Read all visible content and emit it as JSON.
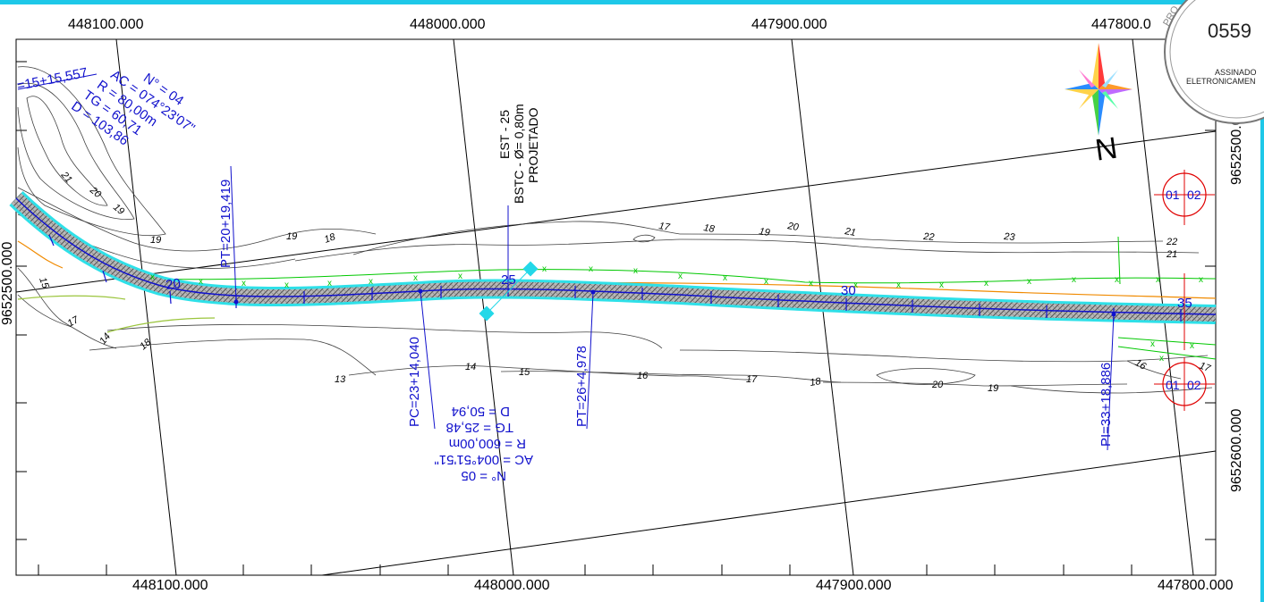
{
  "grid": {
    "top_x_labels": [
      "448100.000",
      "448000.000",
      "447900.000",
      "447800.0"
    ],
    "bottom_x_labels": [
      "448100.000",
      "448000.000",
      "447900.000",
      "447800.000"
    ],
    "left_y_labels": [
      "9652500.000"
    ],
    "right_y_labels": [
      "9652500.0",
      "9652600.000"
    ]
  },
  "curve_4": {
    "n": "N° = 04",
    "ac": "AC = 074°23'07\"",
    "r": "R = 80,00m",
    "tg": "TG = 60,71",
    "d": "D = 103,86"
  },
  "curve_5": {
    "n": "N° = 05",
    "ac": "AC = 004°51'51\"",
    "r": "R = 600,00m",
    "tg": "TG = 25,48",
    "d": "D = 50,94"
  },
  "stations": {
    "s15": "=15+15,557",
    "pt20": "PT=20+19,419",
    "pc23": "PC=23+14,040",
    "pt26": "PT=26+4,978",
    "pi33": "PI=33+18,886"
  },
  "culvert": {
    "line1": "EST - 25",
    "line2": "BSTC - Ø= 0,80m",
    "line3": "PROJETADO"
  },
  "chainage_marks": [
    "20",
    "25",
    "30",
    "35"
  ],
  "contour_labels_upper": [
    "21",
    "20",
    "19",
    "19",
    "19",
    "18",
    "17",
    "18",
    "19",
    "20",
    "21",
    "22",
    "23",
    "22",
    "21"
  ],
  "contour_labels_lower": [
    "15",
    "17",
    "14",
    "18",
    "13",
    "14",
    "15",
    "16",
    "17",
    "18",
    "20",
    "19",
    "16",
    "17"
  ],
  "north_label": "N",
  "section_markers": {
    "left": "01",
    "right": "02"
  },
  "stamp": {
    "number": "0559",
    "line1": "ASSINADO",
    "line2": "ELETRONICAMEN",
    "arc": "PRO"
  },
  "colors": {
    "road_axis": "#1010cc",
    "road_band": "#2ee0e8",
    "fence": "#00c800",
    "culvert_marker": "#23d8e8",
    "section_marker": "#e00000",
    "edge_orange": "#f08a00",
    "contour": "#404040"
  }
}
